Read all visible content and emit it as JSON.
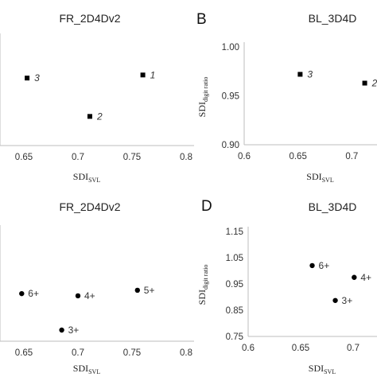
{
  "chart_data": [
    {
      "panel": "",
      "type": "scatter",
      "title": "FR_2D4Dv2",
      "xlabel": "SDI",
      "xlabel_sub": "SVL",
      "ylabel": "",
      "ylabel_sub": "",
      "xlim": [
        0.6,
        0.8
      ],
      "xticks": [
        "0.65",
        "0.7",
        "0.75",
        "0.8"
      ],
      "ylim": [
        0.92,
        0.99
      ],
      "yticks": [],
      "marker": "square",
      "points": [
        {
          "label": "3",
          "x": 0.653,
          "y": 0.964
        },
        {
          "label": "1",
          "x": 0.76,
          "y": 0.966
        },
        {
          "label": "2",
          "x": 0.711,
          "y": 0.939
        }
      ]
    },
    {
      "panel": "B",
      "type": "scatter",
      "title": "BL_3D4D",
      "xlabel": "SDI",
      "xlabel_sub": "SVL",
      "ylabel": "SDI",
      "ylabel_sub": "digit ratio",
      "xlim": [
        0.6,
        0.75
      ],
      "xticks": [
        "0.6",
        "0.65",
        "0.7"
      ],
      "ylim": [
        0.9,
        1.0
      ],
      "yticks": [
        "0.90",
        "0.95",
        "1.00"
      ],
      "marker": "square",
      "points": [
        {
          "label": "3",
          "x": 0.652,
          "y": 0.972
        },
        {
          "label": "2",
          "x": 0.712,
          "y": 0.963
        }
      ]
    },
    {
      "panel": "",
      "type": "scatter",
      "title": "FR_2D4Dv2",
      "xlabel": "SDI",
      "xlabel_sub": "SVL",
      "ylabel": "",
      "ylabel_sub": "",
      "xlim": [
        0.6,
        0.8
      ],
      "xticks": [
        "0.65",
        "0.7",
        "0.75",
        "0.8"
      ],
      "ylim": [
        0.75,
        1.15
      ],
      "yticks": [],
      "marker": "circle",
      "points": [
        {
          "label": "6+",
          "x": 0.648,
          "y": 0.921
        },
        {
          "label": "4+",
          "x": 0.7,
          "y": 0.913
        },
        {
          "label": "5+",
          "x": 0.755,
          "y": 0.933
        },
        {
          "label": "3+",
          "x": 0.685,
          "y": 0.79
        }
      ]
    },
    {
      "panel": "D",
      "type": "scatter",
      "title": "BL_3D4D",
      "xlabel": "SDI",
      "xlabel_sub": "SVL",
      "ylabel": "SDI",
      "ylabel_sub": "digit ratio",
      "xlim": [
        0.6,
        0.75
      ],
      "xticks": [
        "0.6",
        "0.65",
        "0.7"
      ],
      "ylim": [
        0.75,
        1.15
      ],
      "yticks": [
        "0.75",
        "0.85",
        "0.95",
        "1.05",
        "1.15"
      ],
      "marker": "circle",
      "points": [
        {
          "label": "6+",
          "x": 0.661,
          "y": 1.02
        },
        {
          "label": "4+",
          "x": 0.701,
          "y": 0.975
        },
        {
          "label": "3+",
          "x": 0.683,
          "y": 0.887
        }
      ]
    }
  ]
}
